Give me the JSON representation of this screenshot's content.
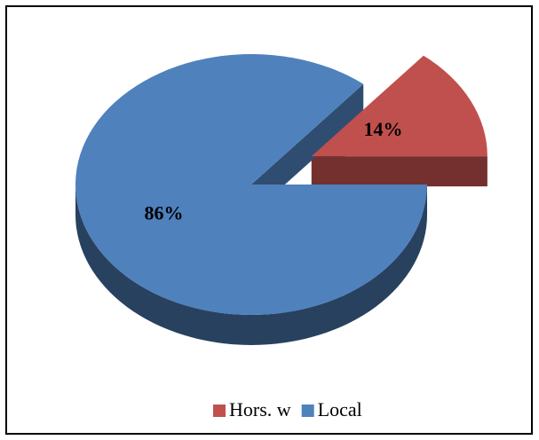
{
  "chart_data": {
    "type": "pie",
    "categories": [
      "Hors. w",
      "Local"
    ],
    "values": [
      14,
      86
    ],
    "value_labels": [
      "14%",
      "86%"
    ],
    "colors": [
      "#c0504d",
      "#4f81bd"
    ],
    "legend": "bottom"
  }
}
